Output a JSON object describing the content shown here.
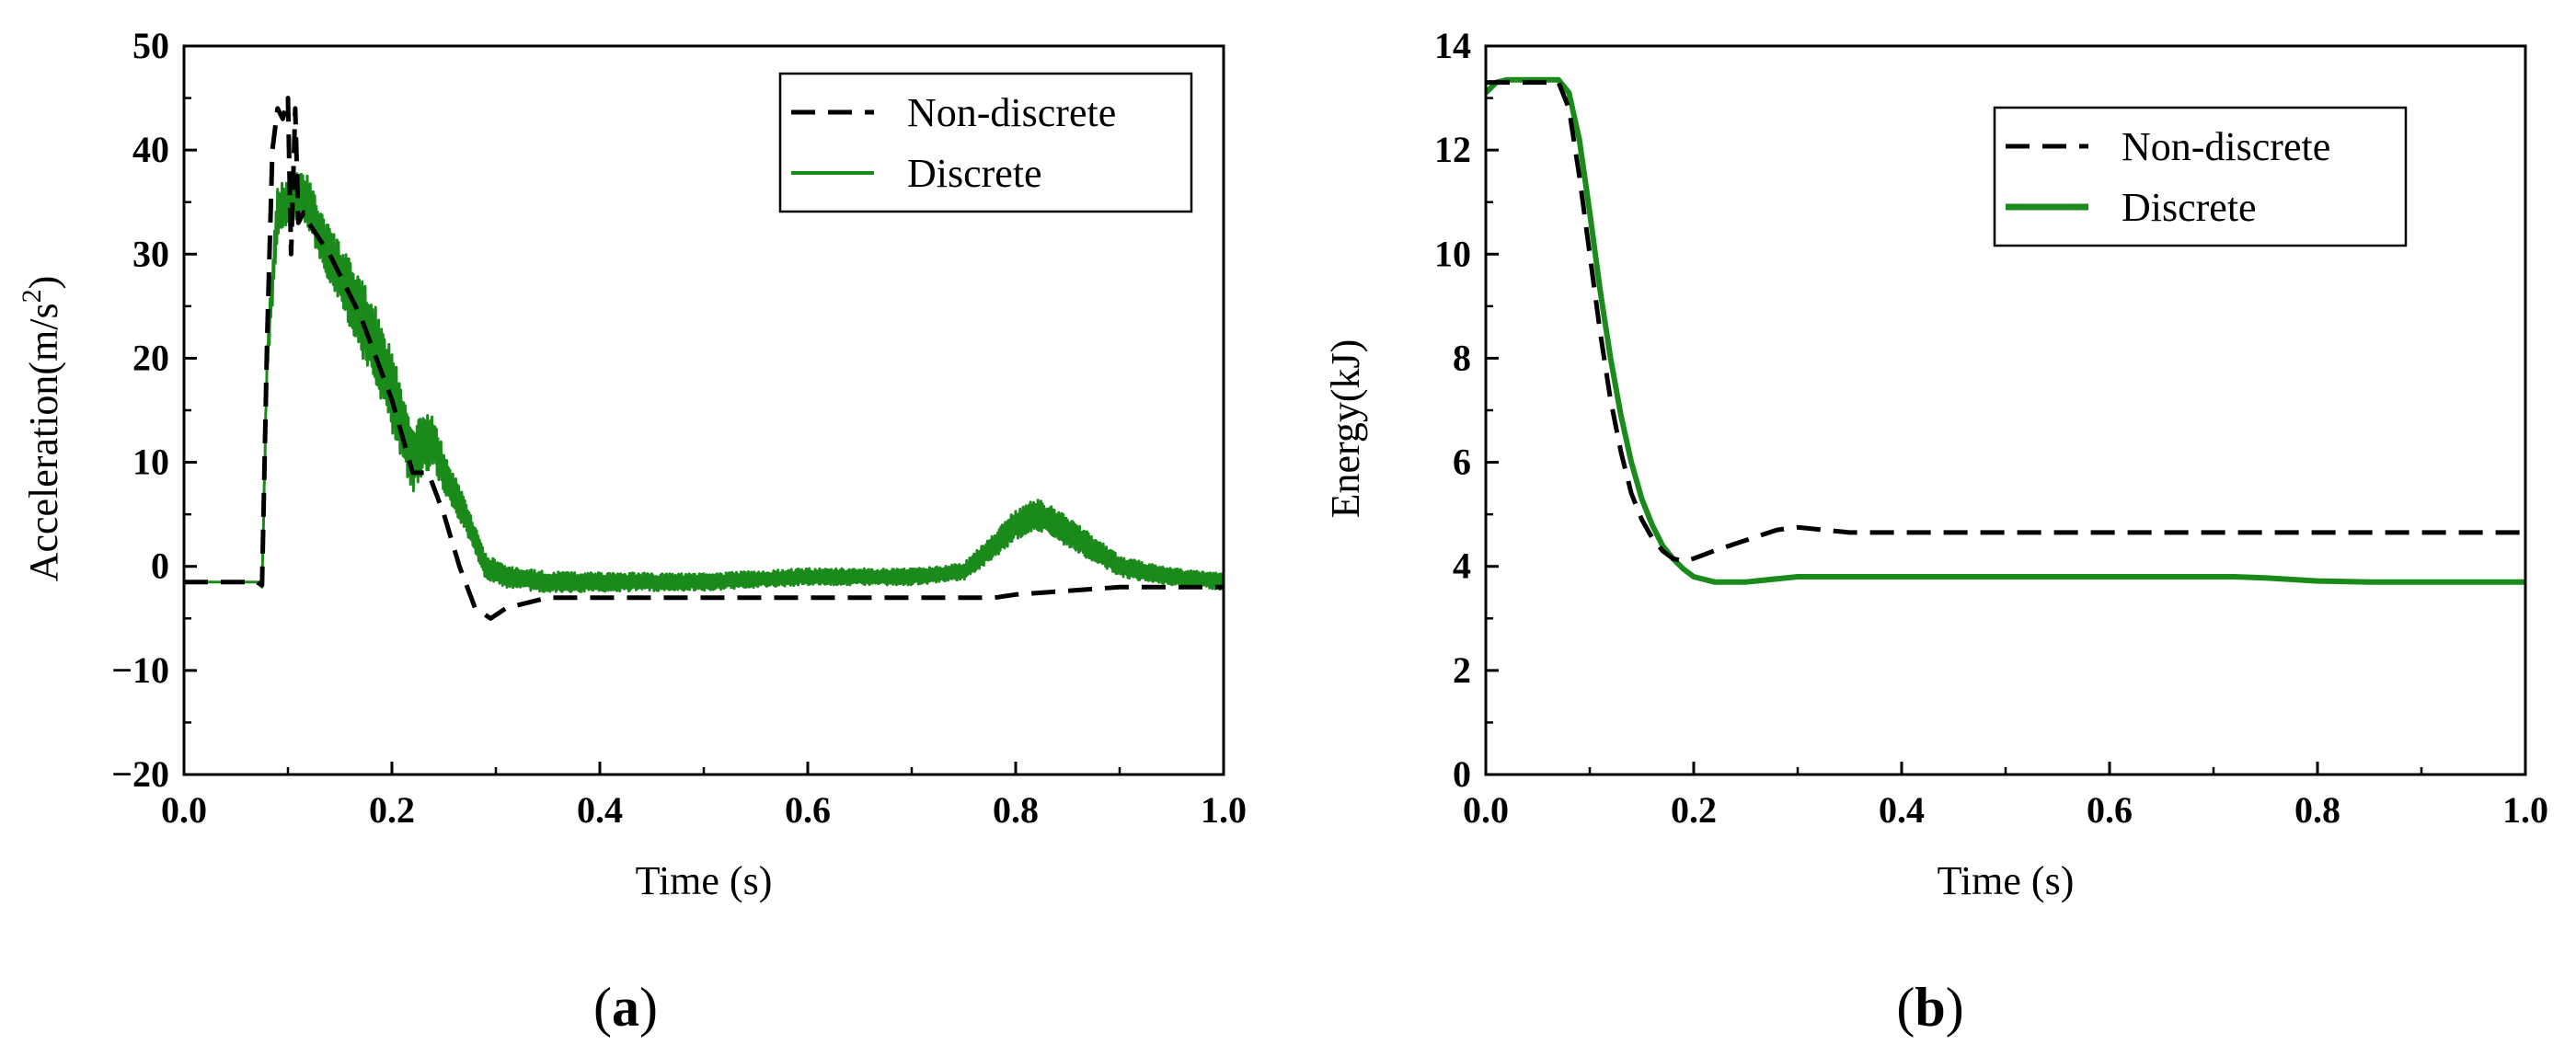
{
  "colors": {
    "non_discrete": "#000000",
    "discrete": "#1a8a1a",
    "axis": "#000000"
  },
  "chart_data": [
    {
      "panel": "(a)",
      "panel_letter": "a",
      "type": "line",
      "xlabel": "Time (s)",
      "ylabel_main": "Acceleration(m/s",
      "ylabel_sup": "2",
      "ylabel_close": ")",
      "xlim": [
        0.0,
        1.0
      ],
      "ylim": [
        -20,
        50
      ],
      "xticks": [
        0.0,
        0.2,
        0.4,
        0.6,
        0.8,
        1.0
      ],
      "xtick_labels": [
        "0.0",
        "0.2",
        "0.4",
        "0.6",
        "0.8",
        "1.0"
      ],
      "yticks": [
        -20,
        -10,
        0,
        10,
        20,
        30,
        40,
        50
      ],
      "ytick_labels": [
        "−20",
        "−10",
        "0",
        "10",
        "20",
        "30",
        "40",
        "50"
      ],
      "legend": {
        "position": "top-right",
        "entries": [
          "Non-discrete",
          "Discrete"
        ]
      },
      "series": [
        {
          "name": "Non-discrete",
          "style": "dashed",
          "x": [
            0.0,
            0.07,
            0.075,
            0.08,
            0.085,
            0.09,
            0.095,
            0.1,
            0.103,
            0.107,
            0.11,
            0.115,
            0.12,
            0.14,
            0.17,
            0.2,
            0.22,
            0.235,
            0.25,
            0.265,
            0.28,
            0.295,
            0.31,
            0.35,
            0.4,
            0.5,
            0.6,
            0.7,
            0.78,
            0.8,
            0.9,
            1.0
          ],
          "y": [
            -1.5,
            -1.5,
            -1.8,
            22,
            40,
            44,
            43,
            45,
            30,
            44,
            33,
            34,
            33,
            30,
            24,
            16,
            9,
            9,
            5,
            0,
            -4,
            -5,
            -4,
            -3,
            -3,
            -3,
            -3,
            -3,
            -3,
            -2.7,
            -2,
            -2
          ]
        },
        {
          "name": "Discrete",
          "style": "solid-thick-noisy",
          "x": [
            0.0,
            0.07,
            0.075,
            0.08,
            0.09,
            0.1,
            0.11,
            0.12,
            0.13,
            0.15,
            0.18,
            0.2,
            0.22,
            0.23,
            0.24,
            0.25,
            0.27,
            0.29,
            0.31,
            0.35,
            0.4,
            0.5,
            0.6,
            0.7,
            0.75,
            0.78,
            0.8,
            0.82,
            0.84,
            0.87,
            0.9,
            0.95,
            1.0
          ],
          "y": [
            -1.5,
            -1.5,
            -2,
            20,
            34,
            35,
            36,
            35,
            32,
            28,
            22,
            17,
            10,
            12,
            12,
            9,
            5,
            0,
            -1,
            -1.5,
            -1.5,
            -1.5,
            -1,
            -1,
            -0.5,
            2,
            4,
            5,
            4,
            2,
            0,
            -1,
            -1.5
          ],
          "noise_band": [
            0,
            0,
            0,
            1.5,
            2.5,
            2.5,
            2.5,
            2.5,
            2.5,
            3,
            4,
            4,
            3,
            3,
            2.5,
            2,
            1.5,
            1.2,
            1,
            1,
            0.9,
            0.8,
            0.8,
            0.8,
            0.8,
            1.2,
            1.5,
            1.5,
            1.5,
            1.3,
            1,
            0.8,
            0.8
          ]
        }
      ]
    },
    {
      "panel": "(b)",
      "panel_letter": "b",
      "type": "line",
      "xlabel": "Time (s)",
      "ylabel_main": "Energy(kJ)",
      "ylabel_sup": "",
      "ylabel_close": "",
      "xlim": [
        0.0,
        1.0
      ],
      "ylim": [
        0,
        14
      ],
      "xticks": [
        0.0,
        0.2,
        0.4,
        0.6,
        0.8,
        1.0
      ],
      "xtick_labels": [
        "0.0",
        "0.2",
        "0.4",
        "0.6",
        "0.8",
        "1.0"
      ],
      "yticks": [
        0,
        2,
        4,
        6,
        8,
        10,
        12,
        14
      ],
      "ytick_labels": [
        "0",
        "2",
        "4",
        "6",
        "8",
        "10",
        "12",
        "14"
      ],
      "legend": {
        "position": "top-right",
        "entries": [
          "Non-discrete",
          "Discrete"
        ]
      },
      "series": [
        {
          "name": "Non-discrete",
          "style": "dashed",
          "x": [
            0.0,
            0.02,
            0.05,
            0.07,
            0.08,
            0.09,
            0.1,
            0.11,
            0.12,
            0.13,
            0.14,
            0.15,
            0.16,
            0.17,
            0.18,
            0.19,
            0.2,
            0.22,
            0.25,
            0.28,
            0.3,
            0.35,
            0.4,
            0.6,
            0.8,
            1.0
          ],
          "y": [
            13.3,
            13.3,
            13.3,
            13.3,
            12.8,
            11.5,
            10.0,
            8.5,
            7.2,
            6.2,
            5.4,
            4.9,
            4.55,
            4.3,
            4.15,
            4.1,
            4.15,
            4.3,
            4.5,
            4.7,
            4.75,
            4.65,
            4.65,
            4.65,
            4.65,
            4.65
          ]
        },
        {
          "name": "Discrete",
          "style": "solid-thick",
          "x": [
            0.0,
            0.01,
            0.02,
            0.05,
            0.07,
            0.08,
            0.09,
            0.1,
            0.11,
            0.12,
            0.13,
            0.14,
            0.15,
            0.16,
            0.17,
            0.18,
            0.19,
            0.2,
            0.22,
            0.25,
            0.3,
            0.4,
            0.6,
            0.72,
            0.75,
            0.8,
            0.85,
            1.0
          ],
          "y": [
            13.1,
            13.3,
            13.35,
            13.35,
            13.35,
            13.1,
            12.2,
            10.8,
            9.3,
            8.0,
            6.9,
            6.0,
            5.3,
            4.8,
            4.4,
            4.15,
            3.95,
            3.8,
            3.7,
            3.7,
            3.8,
            3.8,
            3.8,
            3.8,
            3.78,
            3.72,
            3.7,
            3.7
          ]
        }
      ]
    }
  ]
}
